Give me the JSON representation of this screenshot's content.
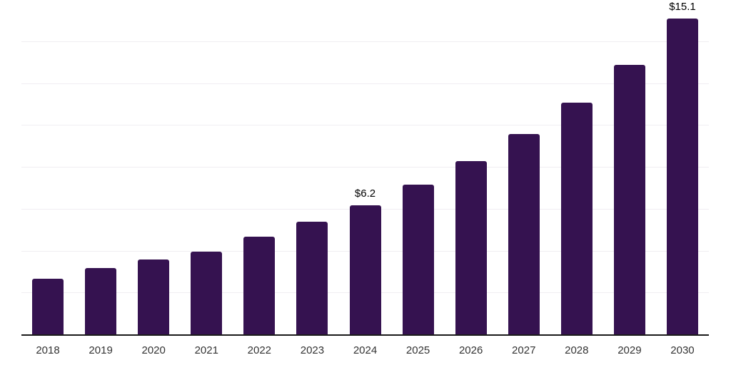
{
  "chart_data": {
    "type": "bar",
    "categories": [
      "2018",
      "2019",
      "2020",
      "2021",
      "2022",
      "2023",
      "2024",
      "2025",
      "2026",
      "2027",
      "2028",
      "2029",
      "2030"
    ],
    "values": [
      2.7,
      3.2,
      3.6,
      4.0,
      4.7,
      5.4,
      6.2,
      7.2,
      8.3,
      9.6,
      11.1,
      12.9,
      15.1
    ],
    "annotations": [
      {
        "category": "2024",
        "label": "$6.2"
      },
      {
        "category": "2030",
        "label": "$15.1"
      }
    ],
    "xlabel": "",
    "ylabel": "",
    "ylim": [
      0,
      16
    ],
    "gridline_step": 2,
    "grid": "horizontal",
    "legend": "none",
    "colors": {
      "bar": "#351250",
      "grid": "#f0eef2",
      "axis_line": "#1a1a1a",
      "tick_label": "#333333",
      "annotation": "#000000"
    }
  }
}
